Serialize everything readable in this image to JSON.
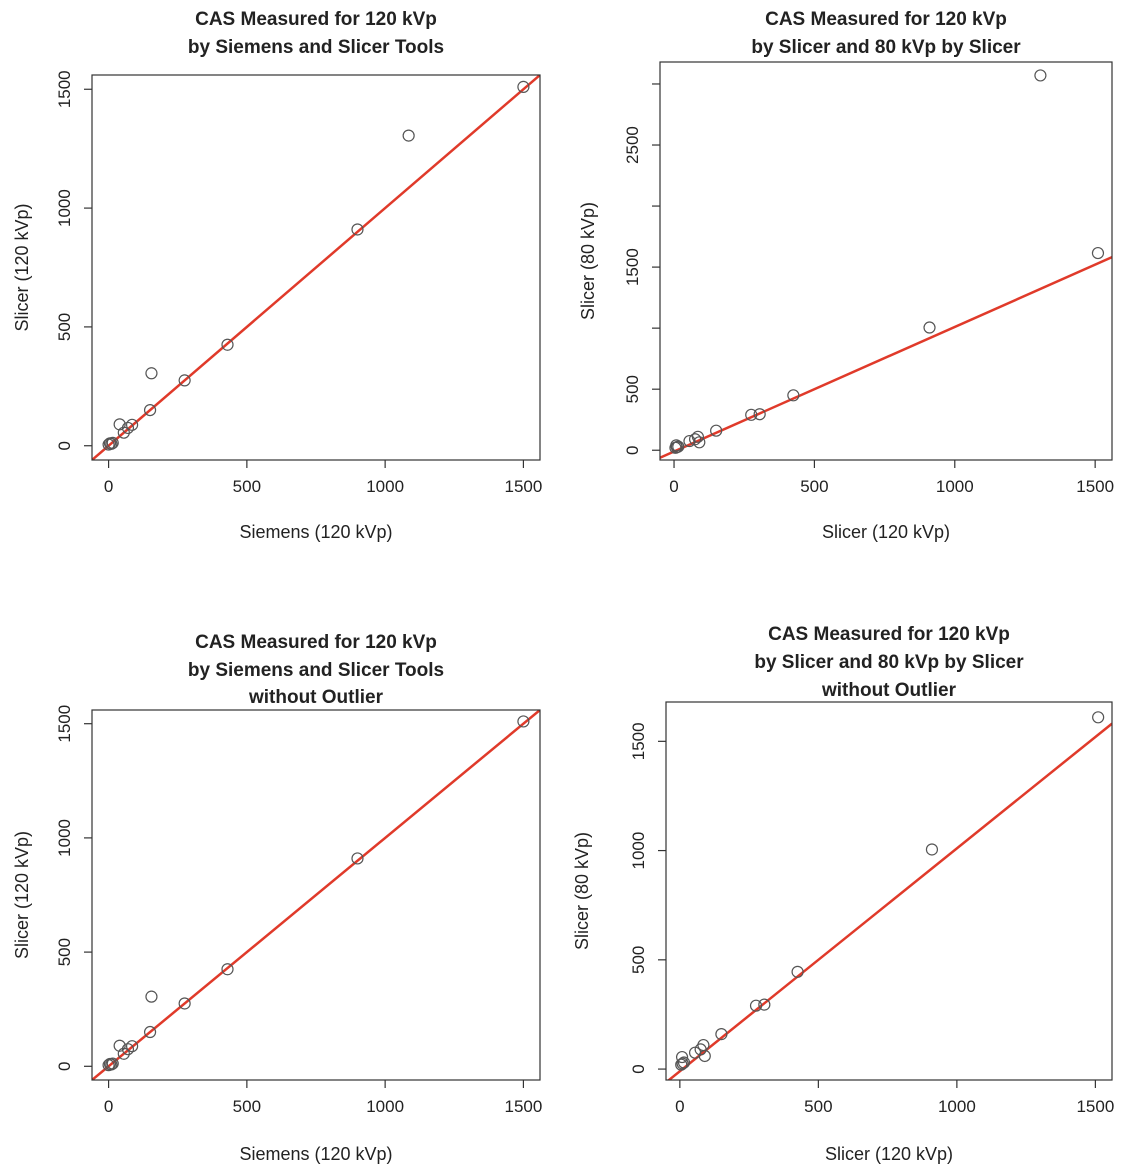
{
  "chart_data": [
    {
      "type": "scatter",
      "title_lines": [
        "CAS Measured for 120 kVp",
        "by Siemens and Slicer Tools"
      ],
      "xlabel": "Siemens (120 kVp)",
      "ylabel": "Slicer  (120 kVp)",
      "xlim": [
        -60,
        1560
      ],
      "ylim": [
        -60,
        1560
      ],
      "x_ticks": [
        0,
        500,
        1000,
        1500
      ],
      "y_ticks": [
        0,
        500,
        1000,
        1500
      ],
      "x_tick_labels": [
        "0",
        "500",
        "1000",
        "1500"
      ],
      "y_tick_labels": [
        "0",
        "500",
        "1000",
        "1500"
      ],
      "grid": false,
      "fit_line": {
        "slope": 1.0,
        "intercept": 0,
        "color": "#e03a2a"
      },
      "points": [
        {
          "x": 0,
          "y": 5
        },
        {
          "x": 5,
          "y": 10
        },
        {
          "x": 10,
          "y": 8
        },
        {
          "x": 15,
          "y": 12
        },
        {
          "x": 40,
          "y": 90
        },
        {
          "x": 55,
          "y": 55
        },
        {
          "x": 70,
          "y": 75
        },
        {
          "x": 85,
          "y": 88
        },
        {
          "x": 150,
          "y": 150
        },
        {
          "x": 155,
          "y": 305
        },
        {
          "x": 275,
          "y": 275
        },
        {
          "x": 430,
          "y": 425
        },
        {
          "x": 900,
          "y": 910
        },
        {
          "x": 1085,
          "y": 1305
        },
        {
          "x": 1500,
          "y": 1510
        }
      ]
    },
    {
      "type": "scatter",
      "title_lines": [
        "CAS Measured for 120 kVp",
        "by Slicer and 80 kVp by Slicer"
      ],
      "xlabel": "Slicer (120 kVp)",
      "ylabel": "Slicer  (80 kVp)",
      "xlim": [
        -50,
        1560
      ],
      "ylim": [
        -80,
        3180
      ],
      "x_ticks": [
        0,
        500,
        1000,
        1500
      ],
      "y_ticks": [
        0,
        500,
        1000,
        1500,
        2000,
        2500,
        3000
      ],
      "x_tick_labels": [
        "0",
        "500",
        "1000",
        "1500"
      ],
      "y_tick_labels": [
        "0",
        "500",
        "",
        "1500",
        "",
        "2500",
        ""
      ],
      "grid": false,
      "fit_line": {
        "slope": 1.02,
        "intercept": -10,
        "color": "#e03a2a"
      },
      "points": [
        {
          "x": 5,
          "y": 20
        },
        {
          "x": 8,
          "y": 40
        },
        {
          "x": 10,
          "y": 25
        },
        {
          "x": 15,
          "y": 30
        },
        {
          "x": 55,
          "y": 75
        },
        {
          "x": 75,
          "y": 90
        },
        {
          "x": 85,
          "y": 110
        },
        {
          "x": 90,
          "y": 65
        },
        {
          "x": 150,
          "y": 160
        },
        {
          "x": 275,
          "y": 290
        },
        {
          "x": 305,
          "y": 295
        },
        {
          "x": 425,
          "y": 450
        },
        {
          "x": 910,
          "y": 1005
        },
        {
          "x": 1305,
          "y": 3070
        },
        {
          "x": 1510,
          "y": 1615
        }
      ]
    },
    {
      "type": "scatter",
      "title_lines": [
        "CAS Measured for 120 kVp",
        "by Siemens and Slicer Tools",
        "without Outlier"
      ],
      "xlabel": "Siemens (120 kVp)",
      "ylabel": "Slicer  (120 kVp)",
      "xlim": [
        -60,
        1560
      ],
      "ylim": [
        -60,
        1560
      ],
      "x_ticks": [
        0,
        500,
        1000,
        1500
      ],
      "y_ticks": [
        0,
        500,
        1000,
        1500
      ],
      "x_tick_labels": [
        "0",
        "500",
        "1000",
        "1500"
      ],
      "y_tick_labels": [
        "0",
        "500",
        "1000",
        "1500"
      ],
      "grid": false,
      "fit_line": {
        "slope": 1.0,
        "intercept": 0,
        "color": "#e03a2a"
      },
      "points": [
        {
          "x": 0,
          "y": 5
        },
        {
          "x": 5,
          "y": 10
        },
        {
          "x": 10,
          "y": 8
        },
        {
          "x": 15,
          "y": 12
        },
        {
          "x": 40,
          "y": 90
        },
        {
          "x": 55,
          "y": 55
        },
        {
          "x": 70,
          "y": 75
        },
        {
          "x": 85,
          "y": 88
        },
        {
          "x": 150,
          "y": 150
        },
        {
          "x": 155,
          "y": 305
        },
        {
          "x": 275,
          "y": 275
        },
        {
          "x": 430,
          "y": 425
        },
        {
          "x": 900,
          "y": 910
        },
        {
          "x": 1500,
          "y": 1510
        }
      ]
    },
    {
      "type": "scatter",
      "title_lines": [
        "CAS Measured for 120 kVp",
        "by Slicer and 80 kVp by Slicer",
        "without Outlier"
      ],
      "xlabel": "Slicer (120 kVp)",
      "ylabel": "Slicer  (80 kVp)",
      "xlim": [
        -50,
        1560
      ],
      "ylim": [
        -50,
        1680
      ],
      "x_ticks": [
        0,
        500,
        1000,
        1500
      ],
      "y_ticks": [
        0,
        500,
        1000,
        1500
      ],
      "x_tick_labels": [
        "0",
        "500",
        "1000",
        "1500"
      ],
      "y_tick_labels": [
        "0",
        "500",
        "1000",
        "1500"
      ],
      "grid": false,
      "fit_line": {
        "slope": 1.02,
        "intercept": -10,
        "color": "#e03a2a"
      },
      "points": [
        {
          "x": 5,
          "y": 20
        },
        {
          "x": 8,
          "y": 55
        },
        {
          "x": 10,
          "y": 25
        },
        {
          "x": 15,
          "y": 30
        },
        {
          "x": 55,
          "y": 75
        },
        {
          "x": 75,
          "y": 90
        },
        {
          "x": 85,
          "y": 110
        },
        {
          "x": 90,
          "y": 60
        },
        {
          "x": 150,
          "y": 160
        },
        {
          "x": 275,
          "y": 290
        },
        {
          "x": 305,
          "y": 295
        },
        {
          "x": 425,
          "y": 445
        },
        {
          "x": 910,
          "y": 1005
        },
        {
          "x": 1510,
          "y": 1610
        }
      ]
    }
  ]
}
